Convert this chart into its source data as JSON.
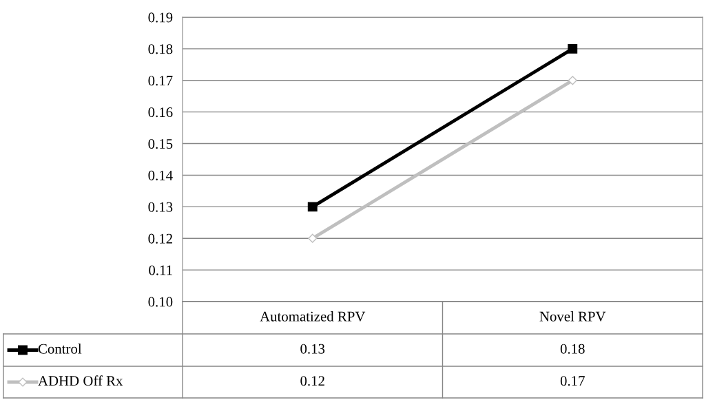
{
  "chart_data": {
    "type": "line",
    "categories": [
      "Automatized RPV",
      "Novel RPV"
    ],
    "series": [
      {
        "name": "Control",
        "color": "#000000",
        "values": [
          0.13,
          0.18
        ],
        "marker": "square"
      },
      {
        "name": "ADHD Off Rx",
        "color": "#bfbfbf",
        "values": [
          0.12,
          0.17
        ],
        "marker": "diamond"
      }
    ],
    "ylim": [
      0.1,
      0.19
    ],
    "yticks": [
      {
        "value": 0.1,
        "label": "0.10"
      },
      0.11,
      0.12,
      0.13,
      0.14,
      0.15,
      0.16,
      0.17,
      0.18,
      0.19
    ],
    "grid": "y",
    "data_labels": true,
    "legend": "bottom",
    "line_style": "solid"
  }
}
